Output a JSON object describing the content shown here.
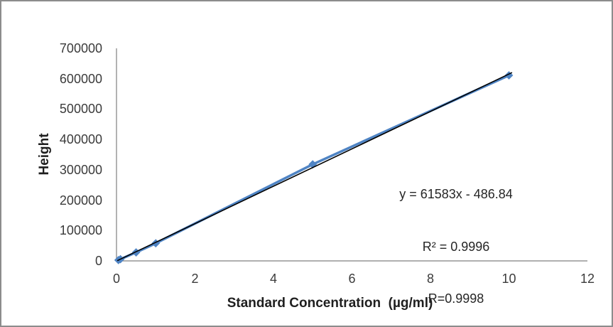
{
  "chart_data": {
    "type": "scatter",
    "title": "",
    "xlabel": "Standard Concentration  (µg/ml)",
    "ylabel": "Height",
    "xlim": [
      0,
      12
    ],
    "ylim": [
      0,
      700000
    ],
    "x_ticks": [
      0,
      2,
      4,
      6,
      8,
      10,
      12
    ],
    "y_ticks": [
      0,
      100000,
      200000,
      300000,
      400000,
      500000,
      600000,
      700000
    ],
    "grid": false,
    "legend": false,
    "axis_color": "#808080",
    "series": [
      {
        "name": "Height",
        "color": "#4f84c4",
        "marker": "diamond",
        "line_width": 3.5,
        "x": [
          0.05,
          0.1,
          0.5,
          1,
          5,
          10
        ],
        "y": [
          2600,
          5600,
          28000,
          58000,
          318000,
          611000
        ]
      }
    ],
    "trendline": {
      "equation": "y = 61583x - 486.84",
      "slope": 61583,
      "intercept": -486.84,
      "color": "#000000",
      "line_width": 1.6,
      "x_start": 0.02,
      "x_end": 10.08
    },
    "annotation": {
      "lines": [
        "y = 61583x - 486.84",
        "R² = 0.9996",
        "R=0.9998"
      ]
    }
  }
}
